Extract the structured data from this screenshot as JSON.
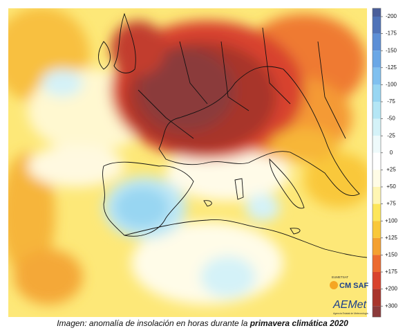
{
  "colorbar": {
    "ticks": [
      {
        "value": -200,
        "label": "-200"
      },
      {
        "value": -175,
        "label": "-175"
      },
      {
        "value": -150,
        "label": "-150"
      },
      {
        "value": -125,
        "label": "-125"
      },
      {
        "value": -100,
        "label": "-100"
      },
      {
        "value": -75,
        "label": "-75"
      },
      {
        "value": -50,
        "label": "-50"
      },
      {
        "value": -25,
        "label": "-25"
      },
      0,
      {
        "value": 25,
        "label": "+25"
      },
      {
        "value": 50,
        "label": "+50"
      },
      {
        "value": 75,
        "label": "+75"
      },
      {
        "value": 100,
        "label": "+100"
      },
      {
        "value": 125,
        "label": "+125"
      },
      {
        "value": 150,
        "label": "+150"
      },
      {
        "value": 175,
        "label": "+175"
      },
      {
        "value": 200,
        "label": "+200"
      },
      {
        "value": 300,
        "label": "+300"
      }
    ],
    "colors": [
      "#4a5e9a",
      "#4f73b8",
      "#5c8fd6",
      "#6aa7e6",
      "#80c0ef",
      "#98d6f2",
      "#b4e6f5",
      "#d4f2f8",
      "#eefafb",
      "#ffffff",
      "#fffce6",
      "#fff6b3",
      "#fde65a",
      "#f9c83a",
      "#f4a030",
      "#ec6a2f",
      "#d8432d",
      "#a8352c",
      "#8b3a3a"
    ]
  },
  "logos": {
    "eumetsat": "EUMETSAT",
    "cmsaf": "CM SAF",
    "aemet": "AEMet",
    "aemet_sub": "Agencia Estatal de Meteorología"
  },
  "caption": {
    "text": "Imagen: anomalía de insolación en horas durante la ",
    "bold": "primavera climática 2020"
  }
}
